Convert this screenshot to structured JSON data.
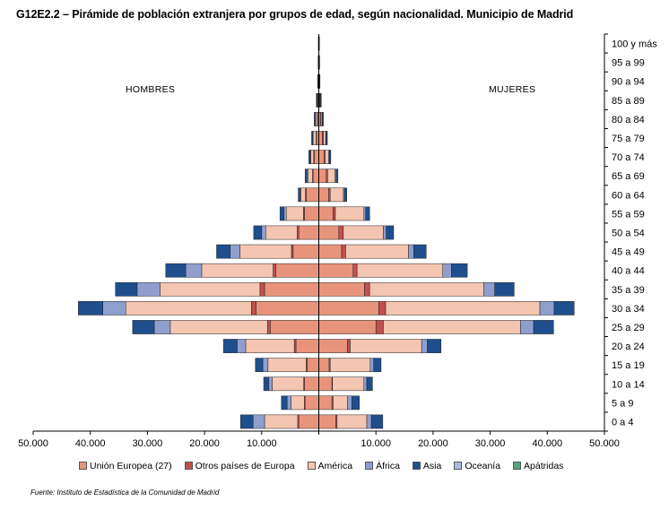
{
  "title": "G12E2.2 – Pirámide de población extranjera por grupos de edad, según nacionalidad. Municipio de Madrid",
  "left_label": "HOMBRES",
  "right_label": "MUJERES",
  "source": "Fuente: Instituto de Estadística de la Comunidad de Madrid",
  "colors": {
    "ue27": "#e8947c",
    "otros_europa": "#c0504d",
    "america": "#f4c5b0",
    "africa": "#8e9fce",
    "asia": "#1f4e8c",
    "oceania": "#a9bce2",
    "apatridas": "#5aa57c"
  },
  "chart_data": {
    "type": "bar",
    "orientation": "horizontal-population-pyramid",
    "stacked": true,
    "categories": [
      "0 a 4",
      "5 a 9",
      "10 a 14",
      "15 a 19",
      "20 a 24",
      "25 a 29",
      "30 a 34",
      "35 a 39",
      "40 a 44",
      "45 a 49",
      "50 a 54",
      "55 a 59",
      "60 a 64",
      "65 a 69",
      "70 a 74",
      "75 a 79",
      "80 a 84",
      "85 a 89",
      "90 a 94",
      "95 a 99",
      "100 y más"
    ],
    "xlim": [
      -50000,
      50000
    ],
    "x_ticks": [
      -50000,
      -40000,
      -30000,
      -20000,
      -10000,
      0,
      10000,
      20000,
      30000,
      40000,
      50000
    ],
    "x_tick_labels": [
      "50.000",
      "40.000",
      "30.000",
      "20.000",
      "10.000",
      "",
      "10.000",
      "20.000",
      "30.000",
      "40.000",
      "50.000"
    ],
    "legend_position": "bottom",
    "legend": [
      "Unión Europea (27)",
      "Otros países de Europa",
      "América",
      "África",
      "Asia",
      "Oceanía",
      "Apátridas"
    ],
    "series_keys": [
      "ue27",
      "otros_europa",
      "america",
      "africa",
      "asia",
      "oceania",
      "apatridas"
    ],
    "hombres": [
      {
        "ue27": 3500,
        "otros_europa": 200,
        "america": 5800,
        "africa": 2000,
        "asia": 2200,
        "oceania": 0,
        "apatridas": 0
      },
      {
        "ue27": 2400,
        "otros_europa": 150,
        "america": 2300,
        "africa": 700,
        "asia": 1000,
        "oceania": 0,
        "apatridas": 0
      },
      {
        "ue27": 2500,
        "otros_europa": 150,
        "america": 5500,
        "africa": 600,
        "asia": 900,
        "oceania": 0,
        "apatridas": 0
      },
      {
        "ue27": 2000,
        "otros_europa": 200,
        "america": 6700,
        "africa": 900,
        "asia": 1300,
        "oceania": 0,
        "apatridas": 0
      },
      {
        "ue27": 4000,
        "otros_europa": 300,
        "america": 8500,
        "africa": 1500,
        "asia": 2400,
        "oceania": 0,
        "apatridas": 0
      },
      {
        "ue27": 8500,
        "otros_europa": 500,
        "america": 17000,
        "africa": 2800,
        "asia": 3800,
        "oceania": 0,
        "apatridas": 0
      },
      {
        "ue27": 11000,
        "otros_europa": 800,
        "america": 22000,
        "africa": 4000,
        "asia": 4300,
        "oceania": 0,
        "apatridas": 0
      },
      {
        "ue27": 9500,
        "otros_europa": 800,
        "america": 17500,
        "africa": 4000,
        "asia": 3800,
        "oceania": 0,
        "apatridas": 0
      },
      {
        "ue27": 7500,
        "otros_europa": 500,
        "america": 12500,
        "africa": 2800,
        "asia": 3500,
        "oceania": 0,
        "apatridas": 0
      },
      {
        "ue27": 4500,
        "otros_europa": 300,
        "america": 9000,
        "africa": 1700,
        "asia": 2400,
        "oceania": 0,
        "apatridas": 0
      },
      {
        "ue27": 3500,
        "otros_europa": 300,
        "america": 5500,
        "africa": 700,
        "asia": 1400,
        "oceania": 0,
        "apatridas": 0
      },
      {
        "ue27": 2500,
        "otros_europa": 200,
        "america": 3000,
        "africa": 400,
        "asia": 700,
        "oceania": 0,
        "apatridas": 0
      },
      {
        "ue27": 2200,
        "otros_europa": 150,
        "america": 800,
        "africa": 150,
        "asia": 300,
        "oceania": 0,
        "apatridas": 0
      },
      {
        "ue27": 1000,
        "otros_europa": 100,
        "america": 800,
        "africa": 200,
        "asia": 300,
        "oceania": 0,
        "apatridas": 0
      },
      {
        "ue27": 800,
        "otros_europa": 100,
        "america": 500,
        "africa": 100,
        "asia": 250,
        "oceania": 0,
        "apatridas": 0
      },
      {
        "ue27": 400,
        "otros_europa": 80,
        "america": 500,
        "africa": 80,
        "asia": 200,
        "oceania": 0,
        "apatridas": 0
      },
      {
        "ue27": 250,
        "otros_europa": 50,
        "america": 300,
        "africa": 50,
        "asia": 150,
        "oceania": 0,
        "apatridas": 0
      },
      {
        "ue27": 120,
        "otros_europa": 30,
        "america": 150,
        "africa": 30,
        "asia": 100,
        "oceania": 0,
        "apatridas": 0
      },
      {
        "ue27": 50,
        "otros_europa": 20,
        "america": 50,
        "africa": 10,
        "asia": 80,
        "oceania": 0,
        "apatridas": 0
      },
      {
        "ue27": 20,
        "otros_europa": 10,
        "america": 20,
        "africa": 10,
        "asia": 60,
        "oceania": 0,
        "apatridas": 0
      },
      {
        "ue27": 10,
        "otros_europa": 10,
        "america": 10,
        "africa": 10,
        "asia": 50,
        "oceania": 0,
        "apatridas": 0
      }
    ],
    "mujeres": [
      {
        "ue27": 3000,
        "otros_europa": 200,
        "america": 5200,
        "africa": 800,
        "asia": 2000,
        "oceania": 0,
        "apatridas": 0
      },
      {
        "ue27": 2300,
        "otros_europa": 200,
        "america": 2500,
        "africa": 800,
        "asia": 1300,
        "oceania": 0,
        "apatridas": 0
      },
      {
        "ue27": 2300,
        "otros_europa": 100,
        "america": 5500,
        "africa": 500,
        "asia": 1000,
        "oceania": 0,
        "apatridas": 0
      },
      {
        "ue27": 1800,
        "otros_europa": 200,
        "america": 7000,
        "africa": 600,
        "asia": 1300,
        "oceania": 0,
        "apatridas": 0
      },
      {
        "ue27": 5000,
        "otros_europa": 500,
        "america": 12500,
        "africa": 1000,
        "asia": 2400,
        "oceania": 0,
        "apatridas": 0
      },
      {
        "ue27": 10000,
        "otros_europa": 1300,
        "america": 24000,
        "africa": 2300,
        "asia": 3500,
        "oceania": 0,
        "apatridas": 0
      },
      {
        "ue27": 10500,
        "otros_europa": 1200,
        "america": 27000,
        "africa": 2500,
        "asia": 3500,
        "oceania": 0,
        "apatridas": 0
      },
      {
        "ue27": 8000,
        "otros_europa": 900,
        "america": 20000,
        "africa": 1900,
        "asia": 3400,
        "oceania": 0,
        "apatridas": 0
      },
      {
        "ue27": 6000,
        "otros_europa": 700,
        "america": 15000,
        "africa": 1500,
        "asia": 2800,
        "oceania": 0,
        "apatridas": 0
      },
      {
        "ue27": 4000,
        "otros_europa": 700,
        "america": 11000,
        "africa": 900,
        "asia": 2200,
        "oceania": 0,
        "apatridas": 0
      },
      {
        "ue27": 3500,
        "otros_europa": 800,
        "america": 7000,
        "africa": 500,
        "asia": 1300,
        "oceania": 0,
        "apatridas": 0
      },
      {
        "ue27": 2500,
        "otros_europa": 400,
        "america": 5000,
        "africa": 300,
        "asia": 700,
        "oceania": 0,
        "apatridas": 0
      },
      {
        "ue27": 1700,
        "otros_europa": 300,
        "america": 2300,
        "africa": 200,
        "asia": 400,
        "oceania": 0,
        "apatridas": 0
      },
      {
        "ue27": 1300,
        "otros_europa": 250,
        "america": 1300,
        "africa": 200,
        "asia": 300,
        "oceania": 0,
        "apatridas": 0
      },
      {
        "ue27": 900,
        "otros_europa": 200,
        "america": 600,
        "africa": 150,
        "asia": 250,
        "oceania": 0,
        "apatridas": 0
      },
      {
        "ue27": 600,
        "otros_europa": 200,
        "america": 400,
        "africa": 100,
        "asia": 200,
        "oceania": 0,
        "apatridas": 0
      },
      {
        "ue27": 300,
        "otros_europa": 100,
        "america": 200,
        "africa": 50,
        "asia": 150,
        "oceania": 0,
        "apatridas": 0
      },
      {
        "ue27": 150,
        "otros_europa": 50,
        "america": 100,
        "africa": 30,
        "asia": 100,
        "oceania": 0,
        "apatridas": 0
      },
      {
        "ue27": 60,
        "otros_europa": 20,
        "america": 40,
        "africa": 10,
        "asia": 80,
        "oceania": 0,
        "apatridas": 0
      },
      {
        "ue27": 20,
        "otros_europa": 10,
        "america": 20,
        "africa": 10,
        "asia": 60,
        "oceania": 0,
        "apatridas": 0
      },
      {
        "ue27": 10,
        "otros_europa": 10,
        "america": 10,
        "africa": 10,
        "asia": 50,
        "oceania": 0,
        "apatridas": 0
      }
    ]
  }
}
